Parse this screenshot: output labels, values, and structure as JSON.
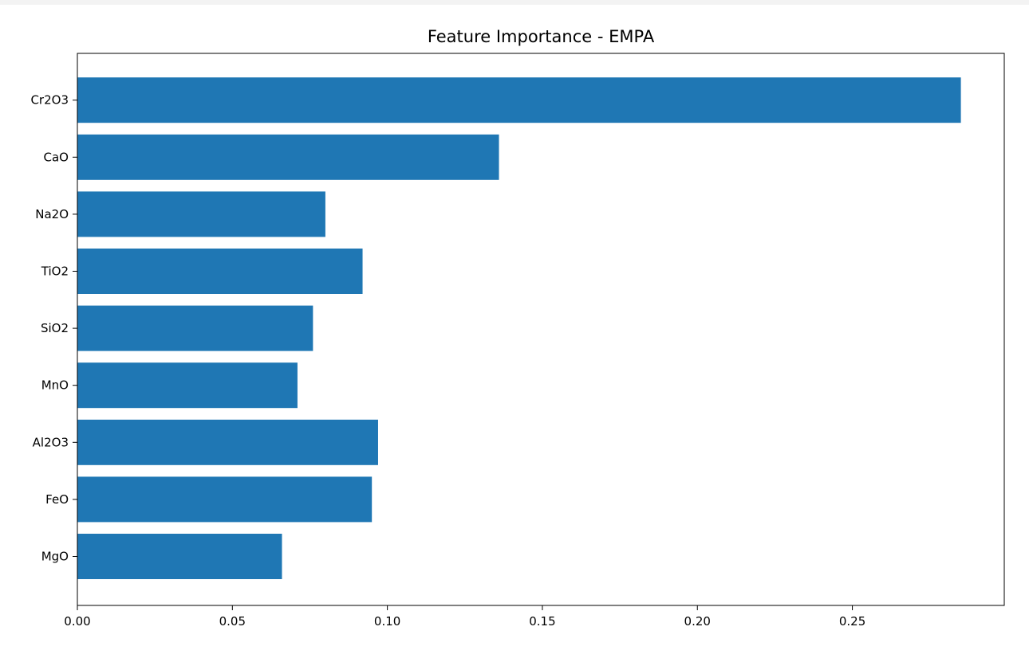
{
  "chart_data": {
    "type": "bar",
    "orientation": "horizontal",
    "title": "Feature Importance - EMPA",
    "xlabel": "",
    "ylabel": "",
    "categories": [
      "MgO",
      "FeO",
      "Al2O3",
      "MnO",
      "SiO2",
      "TiO2",
      "Na2O",
      "CaO",
      "Cr2O3"
    ],
    "values": [
      0.066,
      0.095,
      0.097,
      0.071,
      0.076,
      0.092,
      0.08,
      0.136,
      0.285
    ],
    "xlim": [
      0,
      0.299
    ],
    "xticks": [
      0.0,
      0.05,
      0.1,
      0.15,
      0.2,
      0.25
    ],
    "xtick_labels": [
      "0.00",
      "0.05",
      "0.10",
      "0.15",
      "0.20",
      "0.25"
    ],
    "bar_color": "#1f77b4",
    "grid": false,
    "legend": "none"
  }
}
